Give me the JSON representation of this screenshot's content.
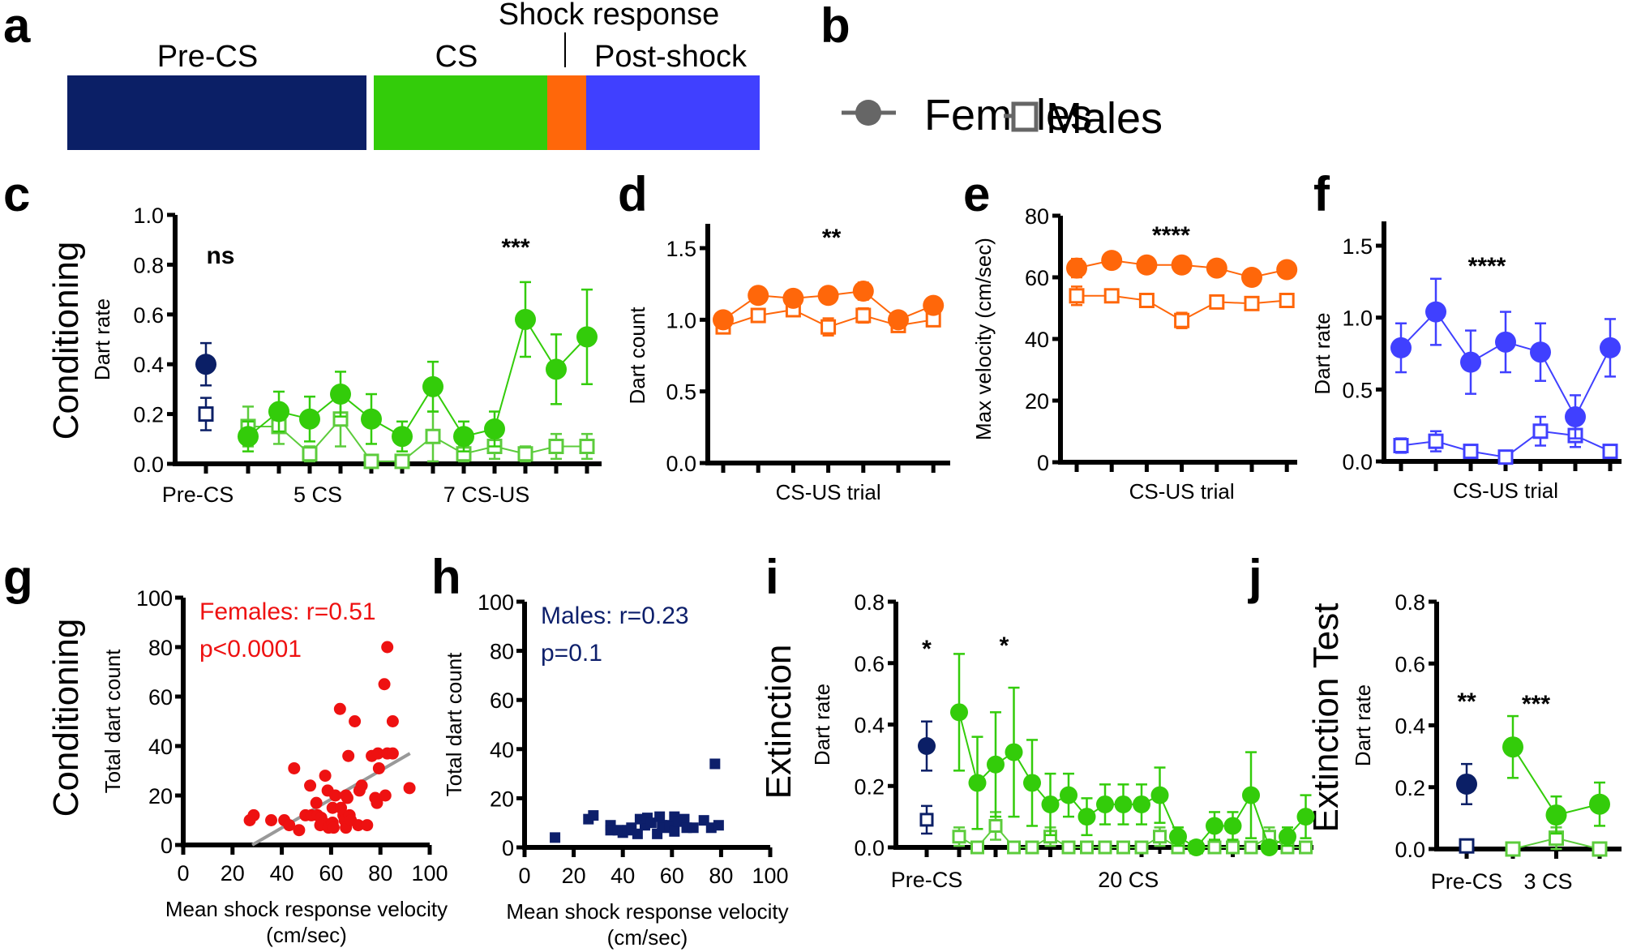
{
  "figure": {
    "panel_letters": [
      "a",
      "b",
      "c",
      "d",
      "e",
      "f",
      "g",
      "h",
      "i",
      "j"
    ],
    "row_labels": {
      "conditioning_top": "Conditioning",
      "conditioning_bottom": "Conditioning",
      "extinction": "Extinction",
      "extinction_test": "Extinction Test"
    },
    "colors": {
      "pre_cs": "#0b1f66",
      "cs": "#33cc0a",
      "shock": "#ff670a",
      "post_shock": "#4040ff",
      "cs_light": "#5ccc3c",
      "female_scatter": "#ee1111",
      "male_scatter": "#0d1f6b",
      "regression": "#999999",
      "legend_gray": "#666666"
    }
  },
  "panel_a": {
    "segments": [
      {
        "name": "Pre-CS",
        "label": "Pre-CS",
        "color": "#0b1f66"
      },
      {
        "name": "CS",
        "label": "CS",
        "color": "#33cc0a"
      },
      {
        "name": "Shock response",
        "label": "Shock response",
        "color": "#ff670a"
      },
      {
        "name": "Post-shock",
        "label": "Post-shock",
        "color": "#4040ff"
      }
    ]
  },
  "legend": {
    "items": [
      {
        "label": "Females",
        "marker": "filled-circle"
      },
      {
        "label": "Males",
        "marker": "open-square"
      }
    ]
  },
  "chart_data": [
    {
      "id": "c",
      "type": "line",
      "row": "Conditioning",
      "ylabel": "Dart rate",
      "ylim": [
        0,
        1.0
      ],
      "yticks": [
        "0.0",
        "0.2",
        "0.4",
        "0.6",
        "0.8",
        "1.0"
      ],
      "category_labels": [
        "Pre-CS",
        "5 CS",
        "7 CS-US"
      ],
      "significance": [
        {
          "text": "ns",
          "at": "Pre-CS"
        },
        {
          "text": "***",
          "at": "CS-US"
        }
      ],
      "pre_cs": {
        "female": {
          "mean": 0.4,
          "sem": 0.085
        },
        "male": {
          "mean": 0.2,
          "sem": 0.065
        }
      },
      "series": [
        {
          "name": "Females",
          "marker": "filled-circle",
          "values": [
            0.11,
            0.21,
            0.18,
            0.28,
            0.18,
            0.11,
            0.31,
            0.11,
            0.14,
            0.58,
            0.38,
            0.51
          ],
          "sem": [
            0.06,
            0.08,
            0.09,
            0.09,
            0.1,
            0.06,
            0.1,
            0.06,
            0.07,
            0.15,
            0.14,
            0.19
          ]
        },
        {
          "name": "Males",
          "marker": "open-square",
          "values": [
            0.15,
            0.15,
            0.04,
            0.18,
            0.01,
            0.01,
            0.11,
            0.04,
            0.07,
            0.04,
            0.07,
            0.07
          ],
          "sem": [
            0.08,
            0.07,
            0.03,
            0.11,
            0.01,
            0.01,
            0.1,
            0.03,
            0.05,
            0.03,
            0.05,
            0.05
          ]
        }
      ]
    },
    {
      "id": "d",
      "type": "line",
      "ylabel": "Dart count",
      "xlabel": "CS-US trial",
      "ylim": [
        0,
        1.5
      ],
      "yticks": [
        "0.0",
        "0.5",
        "1.0",
        "1.5"
      ],
      "significance": [
        {
          "text": "**"
        }
      ],
      "series": [
        {
          "name": "Females",
          "marker": "filled-circle",
          "values": [
            1.0,
            1.17,
            1.15,
            1.17,
            1.2,
            1.0,
            1.1
          ],
          "sem": [
            0.05,
            0.05,
            0.04,
            0.05,
            0.06,
            0.05,
            0.05
          ]
        },
        {
          "name": "Males",
          "marker": "open-square",
          "values": [
            0.95,
            1.03,
            1.07,
            0.95,
            1.03,
            0.96,
            1.0
          ],
          "sem": [
            0.04,
            0.04,
            0.04,
            0.06,
            0.05,
            0.04,
            0.04
          ]
        }
      ]
    },
    {
      "id": "e",
      "type": "line",
      "ylabel": "Max velocity (cm/sec)",
      "xlabel": "CS-US trial",
      "ylim": [
        0,
        80
      ],
      "yticks": [
        "0",
        "20",
        "40",
        "60",
        "80"
      ],
      "significance": [
        {
          "text": "****"
        }
      ],
      "series": [
        {
          "name": "Females",
          "marker": "filled-circle",
          "values": [
            63.0,
            65.5,
            64.0,
            64.0,
            63.0,
            60.0,
            62.5
          ],
          "sem": [
            3.0,
            2.0,
            2.0,
            2.0,
            2.0,
            2.5,
            2.0
          ]
        },
        {
          "name": "Males",
          "marker": "open-square",
          "values": [
            54.0,
            54.0,
            52.5,
            46.0,
            52.0,
            51.5,
            52.5
          ],
          "sem": [
            3.0,
            2.0,
            1.5,
            2.5,
            1.5,
            2.0,
            2.0
          ]
        }
      ]
    },
    {
      "id": "f",
      "type": "line",
      "ylabel": "Dart rate",
      "xlabel": "CS-US trial",
      "ylim": [
        0,
        1.5
      ],
      "yticks": [
        "0.0",
        "0.5",
        "1.0",
        "1.5"
      ],
      "significance": [
        {
          "text": "****"
        }
      ],
      "series": [
        {
          "name": "Females",
          "marker": "filled-circle",
          "values": [
            0.79,
            1.04,
            0.69,
            0.83,
            0.76,
            0.31,
            0.79
          ],
          "sem": [
            0.17,
            0.23,
            0.22,
            0.21,
            0.2,
            0.15,
            0.2
          ]
        },
        {
          "name": "Males",
          "marker": "open-square",
          "values": [
            0.11,
            0.14,
            0.07,
            0.03,
            0.21,
            0.18,
            0.07
          ],
          "sem": [
            0.05,
            0.07,
            0.03,
            0.02,
            0.1,
            0.08,
            0.03
          ]
        }
      ]
    },
    {
      "id": "g",
      "type": "scatter",
      "row": "Conditioning",
      "xlabel": "Mean shock response velocity (cm/sec)",
      "xlabel_line1": "Mean shock response velocity",
      "xlabel_line2": "(cm/sec)",
      "ylabel": "Total dart count",
      "xlim": [
        0,
        100
      ],
      "ylim": [
        0,
        100
      ],
      "xticks": [
        "0",
        "20",
        "40",
        "60",
        "80",
        "100"
      ],
      "yticks": [
        "0",
        "20",
        "40",
        "60",
        "80",
        "100"
      ],
      "annotation": [
        "Females: r=0.51",
        "p<0.0001"
      ],
      "regression": {
        "x": [
          28,
          92
        ],
        "y": [
          0,
          37
        ]
      },
      "series": [
        {
          "name": "Females",
          "marker": "filled-circle",
          "points": [
            [
              27,
              10
            ],
            [
              28.6,
              12
            ],
            [
              35.7,
              10
            ],
            [
              41,
              10
            ],
            [
              43,
              8
            ],
            [
              47,
              6
            ],
            [
              45,
              31
            ],
            [
              51.5,
              24
            ],
            [
              54,
              17
            ],
            [
              49.6,
              12
            ],
            [
              52,
              12
            ],
            [
              54.5,
              12
            ],
            [
              56,
              11
            ],
            [
              57,
              9
            ],
            [
              55.6,
              8
            ],
            [
              57.6,
              28
            ],
            [
              58.6,
              22
            ],
            [
              59,
              7
            ],
            [
              60.6,
              9
            ],
            [
              61,
              7
            ],
            [
              60.6,
              15
            ],
            [
              61.7,
              20
            ],
            [
              63.6,
              55
            ],
            [
              64,
              15
            ],
            [
              65,
              12
            ],
            [
              65.5,
              10
            ],
            [
              66,
              7
            ],
            [
              66,
              20
            ],
            [
              66.6,
              19
            ],
            [
              67,
              36
            ],
            [
              67.5,
              12
            ],
            [
              68,
              10
            ],
            [
              69.6,
              50
            ],
            [
              71,
              8
            ],
            [
              71.5,
              22
            ],
            [
              72.4,
              24
            ],
            [
              74.6,
              8
            ],
            [
              76.5,
              36
            ],
            [
              79,
              37
            ],
            [
              77.9,
              19
            ],
            [
              78.6,
              17
            ],
            [
              79.4,
              31
            ],
            [
              81.6,
              65
            ],
            [
              82,
              20
            ],
            [
              82.8,
              80
            ],
            [
              82.8,
              37
            ],
            [
              85,
              37
            ],
            [
              85,
              50
            ],
            [
              91.8,
              23
            ]
          ]
        }
      ]
    },
    {
      "id": "h",
      "type": "scatter",
      "xlabel": "Mean shock response velocity (cm/sec)",
      "xlabel_line1": "Mean shock response velocity",
      "xlabel_line2": "(cm/sec)",
      "ylabel": "Total dart count",
      "xlim": [
        0,
        100
      ],
      "ylim": [
        0,
        100
      ],
      "xticks": [
        "0",
        "20",
        "40",
        "60",
        "80",
        "100"
      ],
      "yticks": [
        "0",
        "20",
        "40",
        "60",
        "80",
        "100"
      ],
      "annotation": [
        "Males: r=0.23",
        "p=0.1"
      ],
      "series": [
        {
          "name": "Males",
          "marker": "filled-square",
          "points": [
            [
              12.4,
              4
            ],
            [
              26,
              11.5
            ],
            [
              28,
              13
            ],
            [
              35,
              9
            ],
            [
              35,
              7
            ],
            [
              38,
              7
            ],
            [
              40,
              6
            ],
            [
              42,
              7
            ],
            [
              43.5,
              8
            ],
            [
              46,
              5.5
            ],
            [
              47,
              11.5
            ],
            [
              49,
              9
            ],
            [
              50,
              12
            ],
            [
              51.6,
              10
            ],
            [
              54,
              5.5
            ],
            [
              55,
              12.5
            ],
            [
              56,
              9
            ],
            [
              57,
              8
            ],
            [
              59,
              9
            ],
            [
              61,
              12.5
            ],
            [
              61,
              6.5
            ],
            [
              62.6,
              10.5
            ],
            [
              65,
              11.5
            ],
            [
              66,
              8
            ],
            [
              68.7,
              8
            ],
            [
              73,
              11
            ],
            [
              76,
              8
            ],
            [
              77.5,
              34
            ],
            [
              79,
              9
            ]
          ]
        }
      ]
    },
    {
      "id": "i",
      "type": "line",
      "row": "Extinction",
      "ylabel": "Dart rate",
      "ylim": [
        0,
        0.8
      ],
      "yticks": [
        "0.0",
        "0.2",
        "0.4",
        "0.6",
        "0.8"
      ],
      "category_labels": [
        "Pre-CS",
        "20 CS"
      ],
      "significance": [
        {
          "text": "*",
          "at": "Pre-CS"
        },
        {
          "text": "*",
          "at": "CS 3"
        }
      ],
      "pre_cs": {
        "female": {
          "mean": 0.33,
          "sem": 0.08
        },
        "male": {
          "mean": 0.09,
          "sem": 0.045
        }
      },
      "series": [
        {
          "name": "Females",
          "marker": "filled-circle",
          "values": [
            0.44,
            0.21,
            0.27,
            0.31,
            0.21,
            0.14,
            0.17,
            0.1,
            0.14,
            0.14,
            0.14,
            0.17,
            0.035,
            0.0,
            0.07,
            0.07,
            0.17,
            0.0,
            0.035,
            0.1
          ],
          "sem": [
            0.19,
            0.15,
            0.17,
            0.21,
            0.14,
            0.1,
            0.07,
            0.06,
            0.065,
            0.065,
            0.065,
            0.09,
            0.03,
            0.0,
            0.045,
            0.045,
            0.14,
            0.0,
            0.03,
            0.07
          ]
        },
        {
          "name": "Males",
          "marker": "open-square",
          "values": [
            0.035,
            0.0,
            0.07,
            0.0,
            0.0,
            0.035,
            0.0,
            0.0,
            0.0,
            0.0,
            0.0,
            0.035,
            0.0,
            0.0,
            0.0,
            0.0,
            0.0,
            0.035,
            0.0,
            0.0
          ],
          "sem": [
            0.03,
            0.0,
            0.045,
            0.0,
            0.0,
            0.03,
            0.0,
            0.0,
            0.0,
            0.0,
            0.0,
            0.03,
            0.0,
            0.0,
            0.0,
            0.0,
            0.0,
            0.03,
            0.0,
            0.0
          ]
        }
      ]
    },
    {
      "id": "j",
      "type": "line",
      "row": "Extinction Test",
      "ylabel": "Dart rate",
      "ylim": [
        0,
        0.8
      ],
      "yticks": [
        "0.0",
        "0.2",
        "0.4",
        "0.6",
        "0.8"
      ],
      "category_labels": [
        "Pre-CS",
        "3 CS"
      ],
      "significance": [
        {
          "text": "**",
          "at": "Pre-CS"
        },
        {
          "text": "***",
          "at": "CS"
        }
      ],
      "pre_cs": {
        "female": {
          "mean": 0.21,
          "sem": 0.065
        },
        "male": {
          "mean": 0.01,
          "sem": 0.0
        }
      },
      "series": [
        {
          "name": "Females",
          "marker": "filled-circle",
          "values": [
            0.33,
            0.11,
            0.145
          ],
          "sem": [
            0.1,
            0.06,
            0.07
          ]
        },
        {
          "name": "Males",
          "marker": "open-square",
          "values": [
            0.0,
            0.035,
            0.0
          ],
          "sem": [
            0.0,
            0.035,
            0.0
          ]
        }
      ]
    }
  ]
}
